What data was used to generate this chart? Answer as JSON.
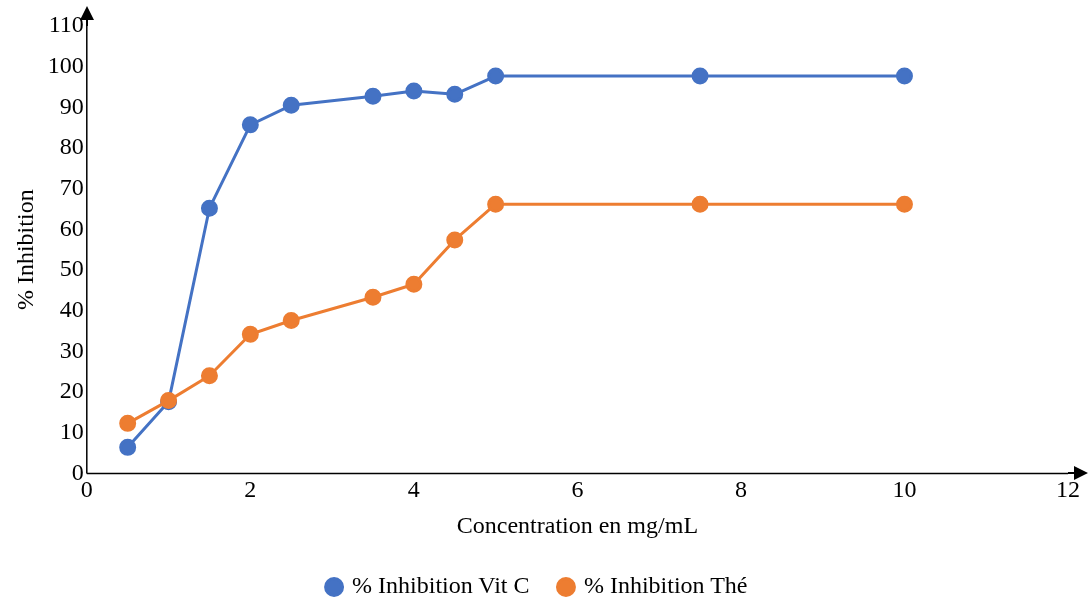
{
  "chart_data": {
    "type": "line",
    "xlabel": "Concentration en mg/mL",
    "ylabel": "% Inhibition",
    "xlim": [
      0,
      12
    ],
    "xticks": [
      0,
      2,
      4,
      6,
      8,
      10,
      12
    ],
    "ylim": [
      0,
      110
    ],
    "yticks": [
      0,
      10,
      20,
      30,
      40,
      50,
      60,
      70,
      80,
      90,
      100,
      110
    ],
    "grid": false,
    "legend": "bottom",
    "marker": "circle",
    "line_style": "solid",
    "series": [
      {
        "name": "% Inhibition Vit C",
        "color": "#4472c4",
        "x": [
          0.5,
          1,
          1.5,
          2,
          2.5,
          3.5,
          4,
          4.5,
          5,
          7.5,
          10
        ],
        "values": [
          6.4,
          17.6,
          65.2,
          85.7,
          90.5,
          92.7,
          94,
          93.2,
          97.7,
          97.7,
          97.7
        ]
      },
      {
        "name": "% Inhibition Thé",
        "color": "#ed7d31",
        "x": [
          0.5,
          1,
          1.5,
          2,
          2.5,
          3.5,
          4,
          4.5,
          5,
          7.5,
          10
        ],
        "values": [
          12.3,
          17.9,
          24,
          34.2,
          37.6,
          43.3,
          46.5,
          57.4,
          66.2,
          66.2,
          66.2
        ]
      }
    ]
  }
}
